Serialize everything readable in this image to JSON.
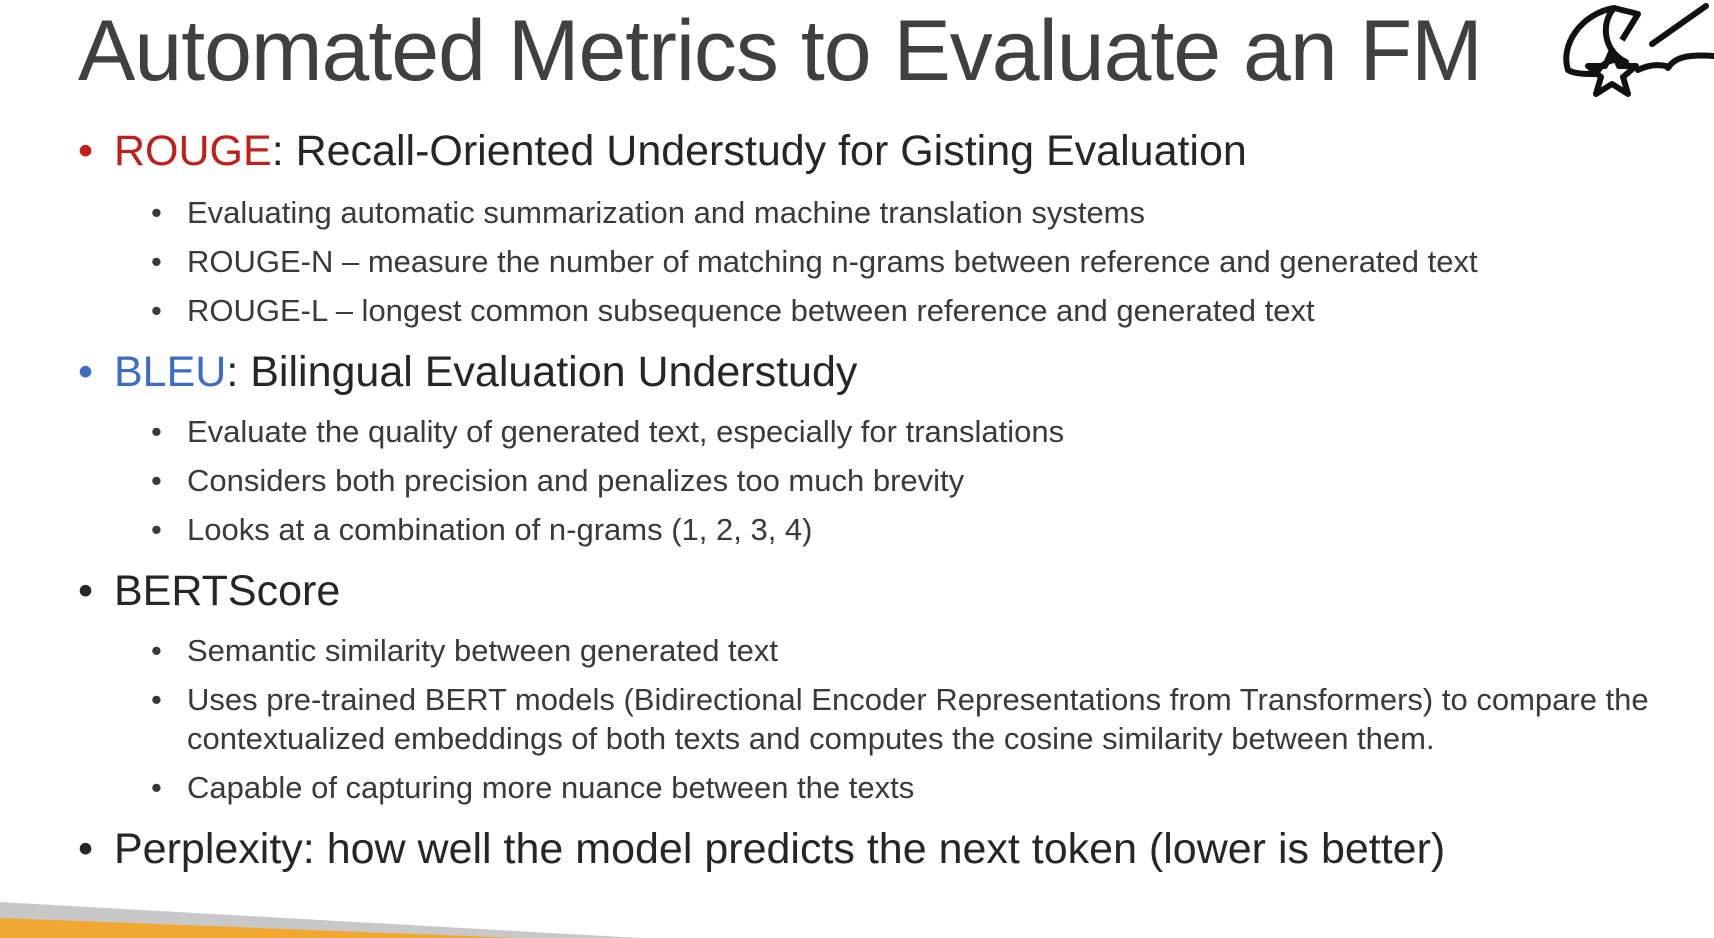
{
  "title": "Automated Metrics to Evaluate an FM",
  "logo_icon": "moon-star-icon",
  "colors": {
    "rouge_term": "#c0201a",
    "bleu_term": "#3d6cc4",
    "footer_orange": "#f0a830",
    "footer_gray": "#c8c8c8"
  },
  "bullet_char": "•",
  "items": {
    "rouge": {
      "term": "ROUGE",
      "rest": ": Recall-Oriented Understudy for Gisting Evaluation",
      "subs": [
        "Evaluating automatic summarization and machine translation systems",
        "ROUGE-N – measure the number of matching n-grams between reference and generated text",
        "ROUGE-L – longest common subsequence between reference and generated text"
      ]
    },
    "bleu": {
      "term": "BLEU",
      "rest": ": Bilingual Evaluation Understudy",
      "subs": [
        "Evaluate the quality of generated text, especially for translations",
        "Considers both precision and penalizes too much brevity",
        "Looks at a combination of n-grams (1, 2, 3, 4)"
      ]
    },
    "bertscore": {
      "term": "BERTScore",
      "subs": [
        "Semantic similarity between generated text",
        "Uses pre-trained BERT models (Bidirectional Encoder Representations from Transformers) to compare the",
        "contextualized embeddings of both texts and computes the cosine similarity between them.",
        "Capable of capturing more nuance between the texts"
      ]
    },
    "perplexity": {
      "term": "Perplexity:",
      "rest": " how well the model predicts the next token (lower is better)"
    }
  }
}
